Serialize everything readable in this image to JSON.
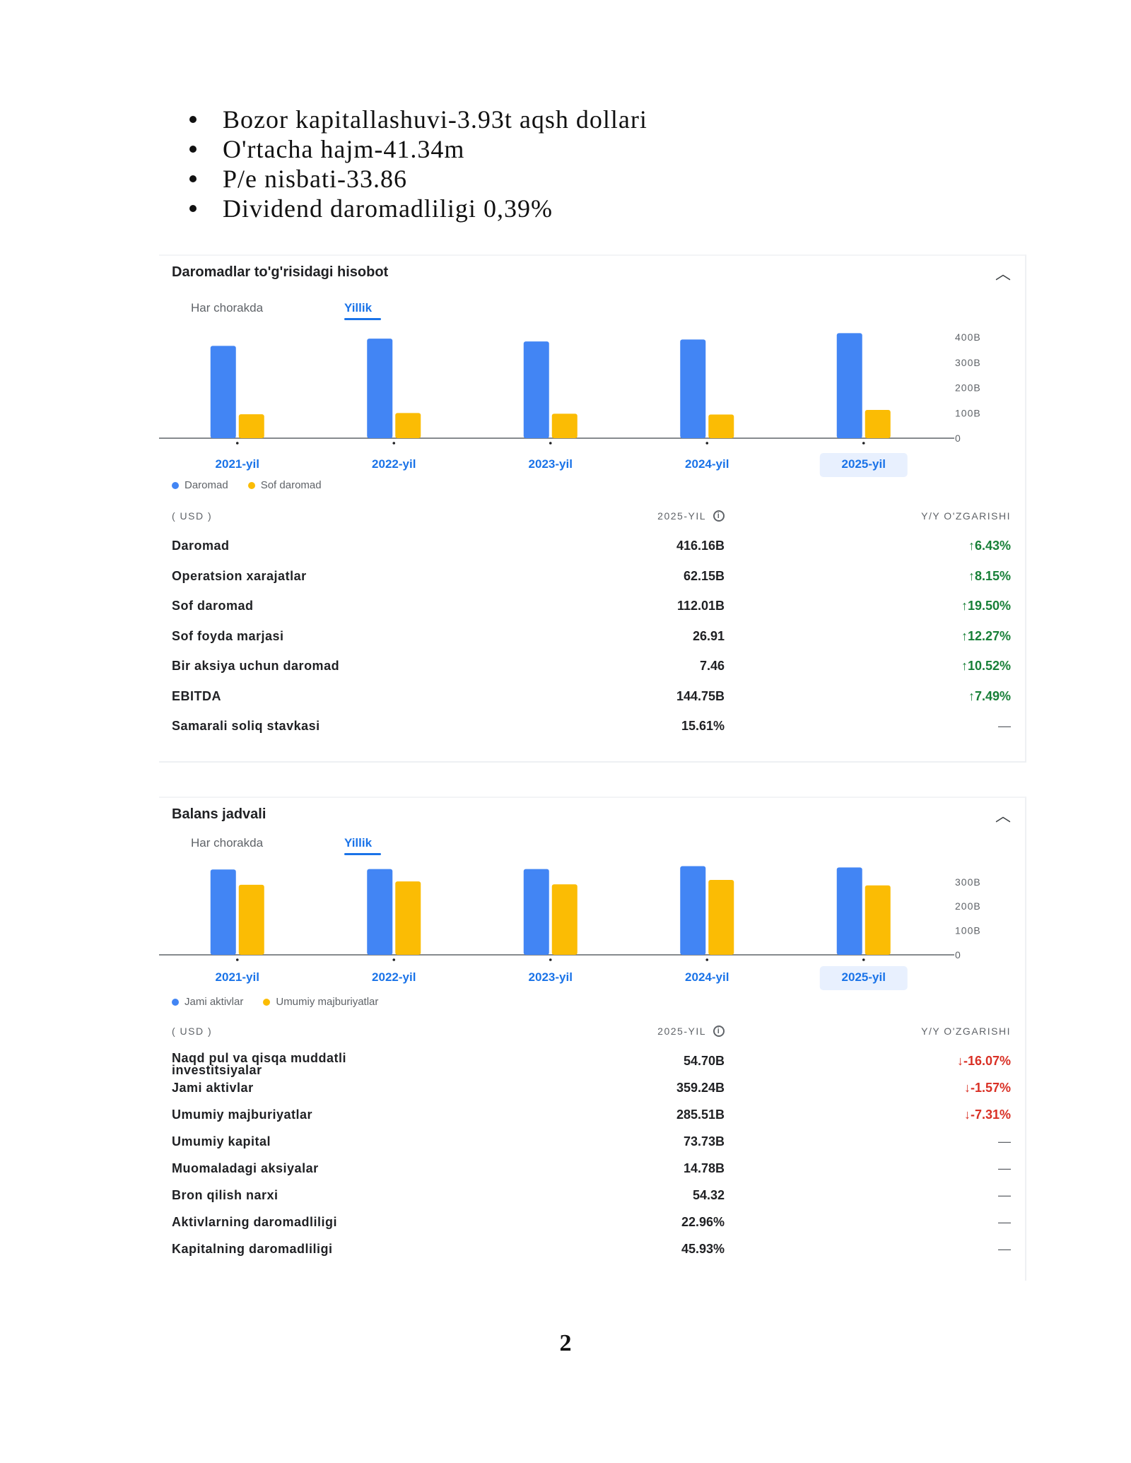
{
  "bullets": [
    "Bozor kapitallashuvi-3.93t aqsh dollari",
    "O'rtacha hajm-41.34m",
    "P/e nisbati-33.86",
    "Dividend daromadliligi 0,39%"
  ],
  "income": {
    "title": "Daromadlar to'g'risidagi hisobot",
    "tabs": [
      "Har chorakda",
      "Yillik"
    ],
    "active_tab": "Yillik",
    "table_header": {
      "unit": "( USD )",
      "period": "2025-YIL",
      "change": "Y/Y O'ZGARISHI"
    },
    "rows": [
      {
        "label": "Daromad",
        "value": "416.16B",
        "change": "↑6.43%",
        "dir": "up"
      },
      {
        "label": "Operatsion xarajatlar",
        "value": "62.15B",
        "change": "↑8.15%",
        "dir": "up"
      },
      {
        "label": "Sof daromad",
        "value": "112.01B",
        "change": "↑19.50%",
        "dir": "up"
      },
      {
        "label": "Sof foyda marjasi",
        "value": "26.91",
        "change": "↑12.27%",
        "dir": "up"
      },
      {
        "label": "Bir aksiya uchun daromad",
        "value": "7.46",
        "change": "↑10.52%",
        "dir": "up"
      },
      {
        "label": "EBITDA",
        "value": "144.75B",
        "change": "↑7.49%",
        "dir": "up"
      },
      {
        "label": "Samarali soliq stavkasi",
        "value": "15.61%",
        "change": "—",
        "dir": "none"
      }
    ]
  },
  "balance": {
    "title": "Balans jadvali",
    "tabs": [
      "Har chorakda",
      "Yillik"
    ],
    "active_tab": "Yillik",
    "table_header": {
      "unit": "( USD )",
      "period": "2025-YIL",
      "change": "Y/Y O'ZGARISHI"
    },
    "rows": [
      {
        "label": "Naqd pul va qisqa muddatli investitsiyalar",
        "value": "54.70B",
        "change": "↓-16.07%",
        "dir": "down"
      },
      {
        "label": "Jami aktivlar",
        "value": "359.24B",
        "change": "↓-1.57%",
        "dir": "down"
      },
      {
        "label": "Umumiy majburiyatlar",
        "value": "285.51B",
        "change": "↓-7.31%",
        "dir": "down"
      },
      {
        "label": "Umumiy kapital",
        "value": "73.73B",
        "change": "—",
        "dir": "none"
      },
      {
        "label": "Muomaladagi aksiyalar",
        "value": "14.78B",
        "change": "—",
        "dir": "none"
      },
      {
        "label": "Bron qilish narxi",
        "value": "54.32",
        "change": "—",
        "dir": "none"
      },
      {
        "label": "Aktivlarning daromadliligi",
        "value": "22.96%",
        "change": "—",
        "dir": "none"
      },
      {
        "label": "Kapitalning daromadliligi",
        "value": "45.93%",
        "change": "—",
        "dir": "none"
      }
    ]
  },
  "colors": {
    "blue": "#4285f4",
    "yellow": "#fbbc04",
    "up": "#188038",
    "down": "#d93025",
    "accent": "#1a73e8",
    "highlight": "#e8f0fe"
  },
  "icons": {
    "collapse": "chevron-up-icon",
    "info": "info-icon"
  },
  "page_number": "2",
  "chart_data": [
    {
      "type": "bar",
      "categories": [
        "2021-yil",
        "2022-yil",
        "2023-yil",
        "2024-yil",
        "2025-yil"
      ],
      "highlighted_category": "2025-yil",
      "series": [
        {
          "name": "Daromad",
          "color": "#4285f4",
          "values": [
            365.82,
            394.33,
            383.29,
            391.04,
            416.16
          ]
        },
        {
          "name": "Sof daromad",
          "color": "#fbbc04",
          "values": [
            94.68,
            99.8,
            97.0,
            93.74,
            112.01
          ]
        }
      ],
      "yticks": [
        "0",
        "100B",
        "200B",
        "300B",
        "400B"
      ],
      "ytick_values": [
        0,
        100,
        200,
        300,
        400
      ],
      "ylim": [
        0,
        420
      ],
      "y_axis_side": "right",
      "legend_position": "bottom-left",
      "grid": false
    },
    {
      "type": "bar",
      "categories": [
        "2021-yil",
        "2022-yil",
        "2023-yil",
        "2024-yil",
        "2025-yil"
      ],
      "highlighted_category": "2025-yil",
      "series": [
        {
          "name": "Jami aktivlar",
          "color": "#4285f4",
          "values": [
            351.0,
            353.0,
            353.0,
            365.0,
            359.24
          ]
        },
        {
          "name": "Umumiy majburiyatlar",
          "color": "#fbbc04",
          "values": [
            288.0,
            302.0,
            290.0,
            308.0,
            285.51
          ]
        }
      ],
      "yticks": [
        "0",
        "100B",
        "200B",
        "300B"
      ],
      "ytick_values": [
        0,
        100,
        200,
        300
      ],
      "ylim": [
        0,
        375
      ],
      "y_axis_side": "right",
      "legend_position": "bottom-left",
      "grid": false
    }
  ]
}
